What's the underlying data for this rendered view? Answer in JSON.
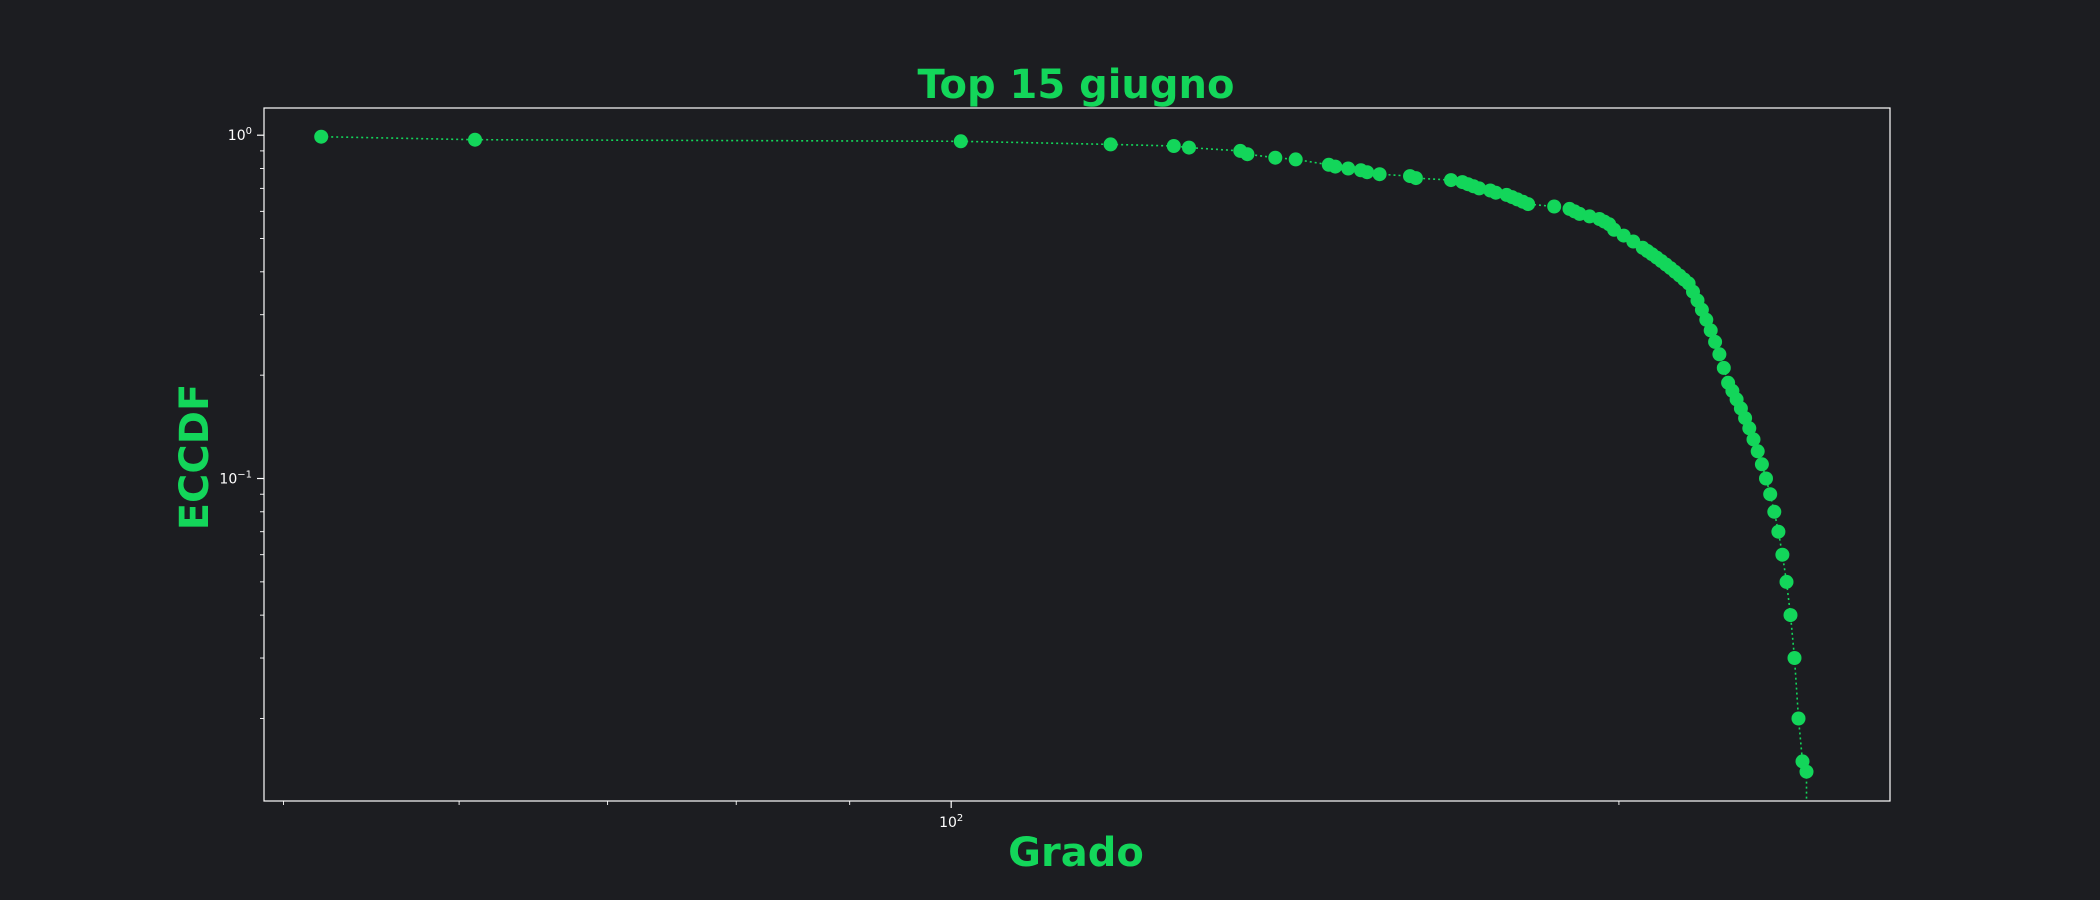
{
  "colors": {
    "background": "#1c1d21",
    "accent": "#13d65a",
    "axes": "#ffffff"
  },
  "chart_data": {
    "type": "scatter",
    "title": "Top 15 giugno",
    "xlabel": "Grado",
    "ylabel": "ECCDF",
    "x_scale": "log",
    "y_scale": "log",
    "xlim": [
      49,
      265
    ],
    "ylim": [
      0.0115,
      1.2
    ],
    "x_ticks": [
      {
        "value": 100,
        "base": "10",
        "exp": "2"
      }
    ],
    "y_ticks": [
      {
        "value": 1,
        "base": "10",
        "exp": "0"
      },
      {
        "value": 0.1,
        "base": "10",
        "exp": "−1"
      }
    ],
    "grid": false,
    "legend": "none",
    "marker": "circle",
    "line_style": "dotted",
    "series": [
      {
        "x": [
          52,
          61,
          101,
          118,
          126,
          128,
          135,
          136,
          140,
          143,
          148,
          149,
          151,
          153,
          154,
          156,
          161,
          162,
          168,
          170,
          171,
          172,
          173,
          175,
          176,
          178,
          179,
          180,
          181,
          182,
          187,
          190,
          191,
          192,
          194,
          196,
          197,
          198,
          199,
          201,
          203,
          205,
          206,
          207,
          208,
          209,
          210,
          211,
          212,
          213,
          214,
          215,
          216,
          217,
          218,
          219,
          220,
          221,
          222,
          223,
          224,
          225,
          226,
          227,
          228,
          229,
          230,
          231,
          232,
          233,
          234,
          235,
          236,
          237,
          238,
          239,
          240,
          241,
          242,
          243
        ],
        "y": [
          0.99,
          0.97,
          0.96,
          0.94,
          0.93,
          0.92,
          0.9,
          0.88,
          0.86,
          0.85,
          0.82,
          0.81,
          0.8,
          0.79,
          0.78,
          0.77,
          0.76,
          0.75,
          0.74,
          0.73,
          0.72,
          0.71,
          0.7,
          0.69,
          0.68,
          0.67,
          0.66,
          0.65,
          0.64,
          0.63,
          0.62,
          0.61,
          0.6,
          0.59,
          0.58,
          0.57,
          0.56,
          0.55,
          0.53,
          0.51,
          0.49,
          0.47,
          0.46,
          0.45,
          0.44,
          0.43,
          0.42,
          0.41,
          0.4,
          0.39,
          0.38,
          0.37,
          0.35,
          0.33,
          0.31,
          0.29,
          0.27,
          0.25,
          0.23,
          0.21,
          0.19,
          0.18,
          0.17,
          0.16,
          0.15,
          0.14,
          0.13,
          0.12,
          0.11,
          0.1,
          0.09,
          0.08,
          0.07,
          0.06,
          0.05,
          0.04,
          0.03,
          0.02,
          0.015,
          0.014
        ]
      }
    ]
  }
}
